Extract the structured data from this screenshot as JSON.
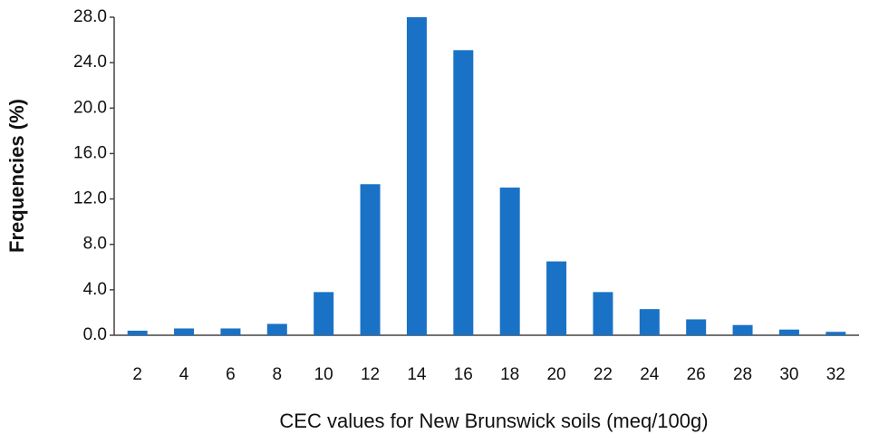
{
  "chart_data": {
    "type": "bar",
    "x_label": "CEC values for New Brunswick  soils (meq/100g)",
    "y_label": "Frequencies (%)",
    "categories": [
      "2",
      "4",
      "6",
      "8",
      "10",
      "12",
      "14",
      "16",
      "18",
      "20",
      "22",
      "24",
      "26",
      "28",
      "30",
      "32"
    ],
    "values": [
      0.4,
      0.6,
      0.6,
      1.0,
      3.8,
      13.3,
      28.0,
      25.1,
      13.0,
      6.5,
      3.8,
      2.3,
      1.4,
      0.9,
      0.5,
      0.3
    ],
    "color": "#1a72c6",
    "ylim": [
      0,
      28
    ],
    "yticks": [
      {
        "value": 0,
        "label": "0.0"
      },
      {
        "value": 4,
        "label": "4.0"
      },
      {
        "value": 8,
        "label": "8.0"
      },
      {
        "value": 12,
        "label": "12.0"
      },
      {
        "value": 16,
        "label": "16.0"
      },
      {
        "value": 20,
        "label": "20.0"
      },
      {
        "value": 24,
        "label": "24.0"
      },
      {
        "value": 28,
        "label": "28.0"
      }
    ],
    "grid": false
  }
}
